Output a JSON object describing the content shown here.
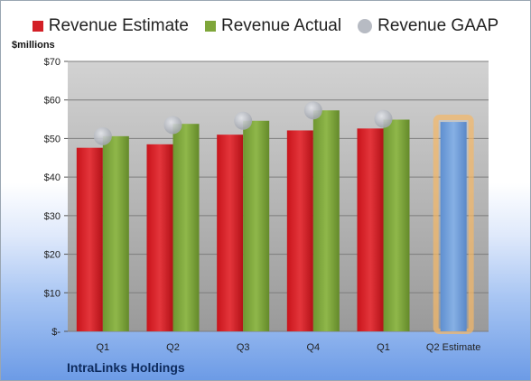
{
  "colors": {
    "estimate": "#d32027",
    "actual": "#7fa63a",
    "gaap": "#b7bbc3",
    "next_estimate": "#6f9fd8",
    "next_estimate_glow": "#f5b866",
    "plot_bg": "#c9c9c9"
  },
  "legend": {
    "estimate_label": "Revenue Estimate",
    "actual_label": "Revenue Actual",
    "gaap_label": "Revenue GAAP"
  },
  "units_label": "$millions",
  "company": "IntraLinks Holdings",
  "chart_data": {
    "type": "bar",
    "categories": [
      "Q1",
      "Q2",
      "Q3",
      "Q4",
      "Q1",
      "Q2 Estimate"
    ],
    "series": [
      {
        "name": "Revenue Estimate",
        "values": [
          47.6,
          48.5,
          51.0,
          52.1,
          52.6,
          null
        ]
      },
      {
        "name": "Revenue Actual",
        "values": [
          50.6,
          53.8,
          54.6,
          57.3,
          54.9,
          null
        ]
      },
      {
        "name": "Revenue GAAP",
        "values": [
          50.6,
          53.5,
          54.6,
          57.3,
          55.1,
          null
        ]
      },
      {
        "name": "Q2 Estimate",
        "values": [
          null,
          null,
          null,
          null,
          null,
          54.3
        ]
      }
    ],
    "ylim": [
      0,
      70
    ],
    "yticks": [
      0,
      10,
      20,
      30,
      40,
      50,
      60,
      70
    ],
    "ytick_labels": [
      "$-",
      "$10",
      "$20",
      "$30",
      "$40",
      "$50",
      "$60",
      "$70"
    ],
    "ylabel": "$millions",
    "grid": true,
    "legend_position": "top"
  }
}
